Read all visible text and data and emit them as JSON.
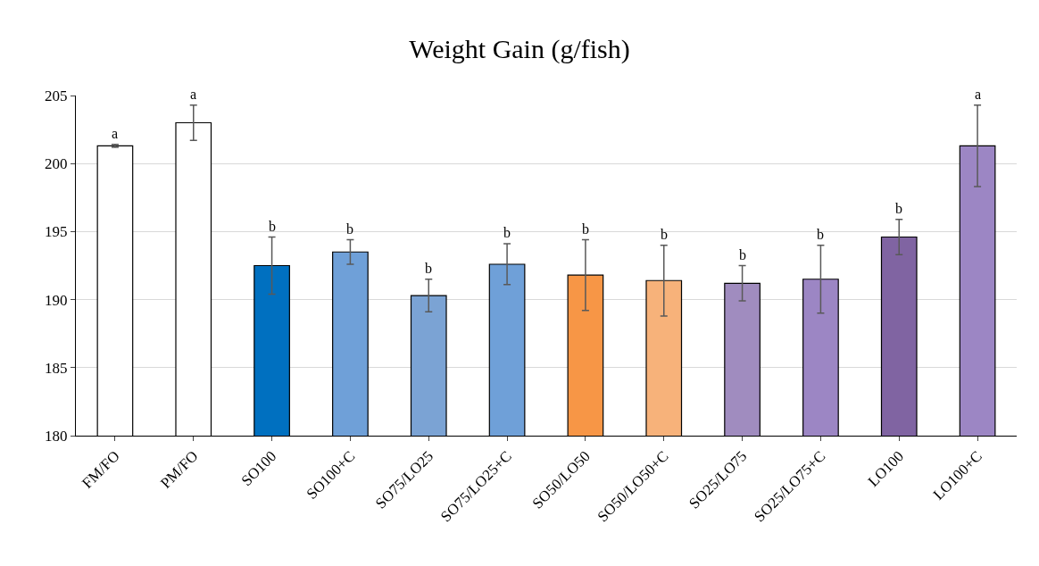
{
  "chart_data": {
    "type": "bar",
    "title": "Weight Gain (g/fish)",
    "categories": [
      "FM/FO",
      "PM/FO",
      "SO100",
      "SO100+C",
      "SO75/LO25",
      "SO75/LO25+C",
      "SO50/LO50",
      "SO50/LO50+C",
      "SO25/LO75",
      "SO25/LO75+C",
      "LO100",
      "LO100+C"
    ],
    "values": [
      201.3,
      203.0,
      192.5,
      193.5,
      190.3,
      192.6,
      191.8,
      191.4,
      191.2,
      191.5,
      194.6,
      201.3
    ],
    "errors": [
      0.1,
      1.3,
      2.1,
      0.9,
      1.2,
      1.5,
      2.6,
      2.6,
      1.3,
      2.5,
      1.3,
      3.0
    ],
    "value_labels": [
      "a",
      "a",
      "b",
      "b",
      "b",
      "b",
      "b",
      "b",
      "b",
      "b",
      "b",
      "a"
    ],
    "colors": [
      "#ffffff",
      "#ffffff",
      "#0070c0",
      "#6fa0d8",
      "#7ba3d4",
      "#6fa0d8",
      "#f79646",
      "#f7b27a",
      "#a08cbf",
      "#9c86c4",
      "#8064a2",
      "#9c86c4"
    ],
    "ylim": [
      180,
      205
    ],
    "yticks": [
      180,
      185,
      190,
      195,
      200,
      205
    ],
    "grid": "y"
  }
}
